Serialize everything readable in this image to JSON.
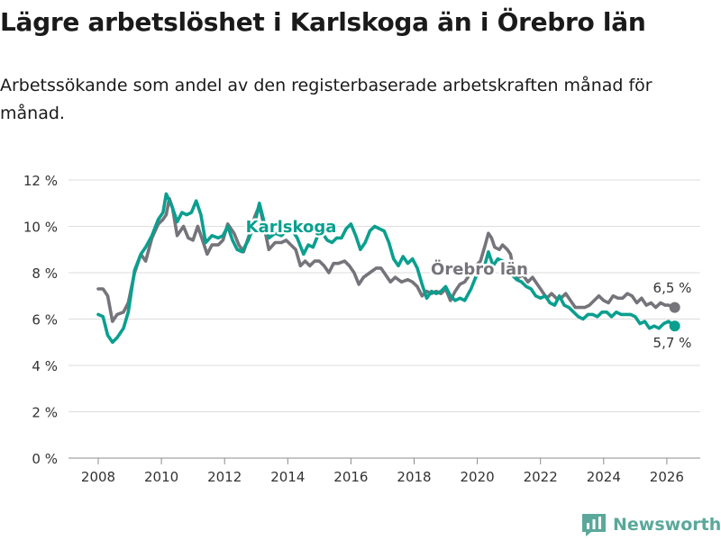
{
  "page": {
    "title": "Lägre arbetslöshet i Karlskoga än i Örebro län",
    "subtitle": "Arbetssökande som andel av den registerbaserade arbetskraften månad för månad."
  },
  "brand": {
    "name": "Newsworthy"
  },
  "chart_data": {
    "type": "line",
    "title": "Lägre arbetslöshet i Karlskoga än i Örebro län",
    "xlabel": "",
    "ylabel": "",
    "ylim": [
      0,
      12
    ],
    "xlim": [
      2007.5,
      2026.8
    ],
    "y_ticks": [
      0,
      2,
      4,
      6,
      8,
      10,
      12
    ],
    "y_tick_labels": [
      "0 %",
      "2 %",
      "4 %",
      "6 %",
      "8 %",
      "10 %",
      "12 %"
    ],
    "x_ticks": [
      2008,
      2010,
      2012,
      2014,
      2016,
      2018,
      2020,
      2022,
      2024,
      2026
    ],
    "x_tick_labels": [
      "2008",
      "2010",
      "2012",
      "2014",
      "2016",
      "2018",
      "2020",
      "2022",
      "2024",
      "2026"
    ],
    "grid": true,
    "legend": "inline labels",
    "series": [
      {
        "name": "Örebro län",
        "color": "#75747a",
        "label": "Örebro län",
        "end_label": "6,5 %",
        "points": [
          [
            2008.0,
            7.3
          ],
          [
            2008.15,
            7.3
          ],
          [
            2008.3,
            7.0
          ],
          [
            2008.45,
            5.9
          ],
          [
            2008.6,
            6.2
          ],
          [
            2008.8,
            6.3
          ],
          [
            2008.95,
            6.7
          ],
          [
            2009.15,
            8.0
          ],
          [
            2009.35,
            8.8
          ],
          [
            2009.5,
            8.5
          ],
          [
            2009.7,
            9.5
          ],
          [
            2009.9,
            10.1
          ],
          [
            2010.05,
            10.3
          ],
          [
            2010.15,
            10.5
          ],
          [
            2010.25,
            11.2
          ],
          [
            2010.35,
            10.8
          ],
          [
            2010.5,
            9.6
          ],
          [
            2010.7,
            10.0
          ],
          [
            2010.85,
            9.5
          ],
          [
            2011.0,
            9.4
          ],
          [
            2011.15,
            10.0
          ],
          [
            2011.3,
            9.4
          ],
          [
            2011.45,
            8.8
          ],
          [
            2011.6,
            9.2
          ],
          [
            2011.8,
            9.2
          ],
          [
            2011.95,
            9.4
          ],
          [
            2012.1,
            10.1
          ],
          [
            2012.3,
            9.7
          ],
          [
            2012.45,
            9.2
          ],
          [
            2012.6,
            8.9
          ],
          [
            2012.8,
            9.7
          ],
          [
            2012.95,
            10.4
          ],
          [
            2013.1,
            10.9
          ],
          [
            2013.25,
            10.0
          ],
          [
            2013.4,
            9.0
          ],
          [
            2013.6,
            9.3
          ],
          [
            2013.8,
            9.3
          ],
          [
            2013.95,
            9.4
          ],
          [
            2014.1,
            9.2
          ],
          [
            2014.25,
            9.0
          ],
          [
            2014.4,
            8.3
          ],
          [
            2014.55,
            8.5
          ],
          [
            2014.7,
            8.3
          ],
          [
            2014.85,
            8.5
          ],
          [
            2015.0,
            8.5
          ],
          [
            2015.15,
            8.3
          ],
          [
            2015.3,
            8.0
          ],
          [
            2015.45,
            8.4
          ],
          [
            2015.6,
            8.4
          ],
          [
            2015.8,
            8.5
          ],
          [
            2015.95,
            8.3
          ],
          [
            2016.1,
            8.0
          ],
          [
            2016.25,
            7.5
          ],
          [
            2016.4,
            7.8
          ],
          [
            2016.6,
            8.0
          ],
          [
            2016.8,
            8.2
          ],
          [
            2016.95,
            8.2
          ],
          [
            2017.1,
            7.9
          ],
          [
            2017.25,
            7.6
          ],
          [
            2017.4,
            7.8
          ],
          [
            2017.6,
            7.6
          ],
          [
            2017.8,
            7.7
          ],
          [
            2017.95,
            7.6
          ],
          [
            2018.1,
            7.4
          ],
          [
            2018.25,
            7.0
          ],
          [
            2018.4,
            7.2
          ],
          [
            2018.55,
            7.1
          ],
          [
            2018.7,
            7.2
          ],
          [
            2018.85,
            7.1
          ],
          [
            2019.0,
            7.3
          ],
          [
            2019.15,
            6.8
          ],
          [
            2019.3,
            7.2
          ],
          [
            2019.45,
            7.5
          ],
          [
            2019.6,
            7.6
          ],
          [
            2019.8,
            8.0
          ],
          [
            2019.95,
            8.3
          ],
          [
            2020.1,
            8.5
          ],
          [
            2020.25,
            9.2
          ],
          [
            2020.35,
            9.7
          ],
          [
            2020.45,
            9.5
          ],
          [
            2020.55,
            9.1
          ],
          [
            2020.7,
            9.0
          ],
          [
            2020.8,
            9.2
          ],
          [
            2020.95,
            9.0
          ],
          [
            2021.05,
            8.8
          ],
          [
            2021.15,
            8.1
          ],
          [
            2021.3,
            7.8
          ],
          [
            2021.45,
            7.9
          ],
          [
            2021.6,
            7.6
          ],
          [
            2021.75,
            7.8
          ],
          [
            2021.9,
            7.5
          ],
          [
            2022.05,
            7.2
          ],
          [
            2022.2,
            6.9
          ],
          [
            2022.35,
            7.1
          ],
          [
            2022.5,
            6.9
          ],
          [
            2022.65,
            6.9
          ],
          [
            2022.8,
            7.1
          ],
          [
            2022.95,
            6.8
          ],
          [
            2023.1,
            6.5
          ],
          [
            2023.25,
            6.5
          ],
          [
            2023.4,
            6.5
          ],
          [
            2023.55,
            6.6
          ],
          [
            2023.7,
            6.8
          ],
          [
            2023.85,
            7.0
          ],
          [
            2024.0,
            6.8
          ],
          [
            2024.15,
            6.7
          ],
          [
            2024.3,
            7.0
          ],
          [
            2024.45,
            6.9
          ],
          [
            2024.6,
            6.9
          ],
          [
            2024.75,
            7.1
          ],
          [
            2024.9,
            7.0
          ],
          [
            2025.05,
            6.7
          ],
          [
            2025.2,
            6.9
          ],
          [
            2025.35,
            6.6
          ],
          [
            2025.5,
            6.7
          ],
          [
            2025.65,
            6.5
          ],
          [
            2025.8,
            6.7
          ],
          [
            2025.95,
            6.6
          ],
          [
            2026.05,
            6.6
          ],
          [
            2026.25,
            6.5
          ]
        ]
      },
      {
        "name": "Karlskoga",
        "color": "#0a9f8f",
        "label": "Karlskoga",
        "end_label": "5,7 %",
        "points": [
          [
            2008.0,
            6.2
          ],
          [
            2008.15,
            6.1
          ],
          [
            2008.3,
            5.3
          ],
          [
            2008.45,
            5.0
          ],
          [
            2008.6,
            5.2
          ],
          [
            2008.8,
            5.6
          ],
          [
            2008.95,
            6.3
          ],
          [
            2009.15,
            8.1
          ],
          [
            2009.35,
            8.8
          ],
          [
            2009.5,
            9.1
          ],
          [
            2009.7,
            9.6
          ],
          [
            2009.9,
            10.3
          ],
          [
            2010.05,
            10.6
          ],
          [
            2010.15,
            11.4
          ],
          [
            2010.25,
            11.1
          ],
          [
            2010.35,
            10.8
          ],
          [
            2010.5,
            10.2
          ],
          [
            2010.65,
            10.6
          ],
          [
            2010.8,
            10.5
          ],
          [
            2010.95,
            10.6
          ],
          [
            2011.1,
            11.1
          ],
          [
            2011.25,
            10.5
          ],
          [
            2011.4,
            9.3
          ],
          [
            2011.6,
            9.6
          ],
          [
            2011.8,
            9.5
          ],
          [
            2011.95,
            9.6
          ],
          [
            2012.1,
            10.0
          ],
          [
            2012.25,
            9.4
          ],
          [
            2012.4,
            9.0
          ],
          [
            2012.55,
            8.9
          ],
          [
            2012.75,
            9.4
          ],
          [
            2012.95,
            10.1
          ],
          [
            2013.1,
            11.0
          ],
          [
            2013.25,
            10.2
          ],
          [
            2013.4,
            9.5
          ],
          [
            2013.6,
            9.7
          ],
          [
            2013.8,
            9.6
          ],
          [
            2013.95,
            9.8
          ],
          [
            2014.1,
            9.9
          ],
          [
            2014.3,
            9.5
          ],
          [
            2014.5,
            8.8
          ],
          [
            2014.65,
            9.2
          ],
          [
            2014.8,
            9.1
          ],
          [
            2014.95,
            9.6
          ],
          [
            2015.1,
            9.7
          ],
          [
            2015.25,
            9.4
          ],
          [
            2015.4,
            9.3
          ],
          [
            2015.55,
            9.5
          ],
          [
            2015.7,
            9.5
          ],
          [
            2015.85,
            9.9
          ],
          [
            2016.0,
            10.1
          ],
          [
            2016.15,
            9.6
          ],
          [
            2016.3,
            9.0
          ],
          [
            2016.45,
            9.3
          ],
          [
            2016.6,
            9.8
          ],
          [
            2016.75,
            10.0
          ],
          [
            2016.9,
            9.9
          ],
          [
            2017.05,
            9.8
          ],
          [
            2017.2,
            9.3
          ],
          [
            2017.35,
            8.6
          ],
          [
            2017.5,
            8.3
          ],
          [
            2017.65,
            8.7
          ],
          [
            2017.8,
            8.4
          ],
          [
            2017.95,
            8.6
          ],
          [
            2018.1,
            8.2
          ],
          [
            2018.25,
            7.5
          ],
          [
            2018.4,
            6.9
          ],
          [
            2018.55,
            7.2
          ],
          [
            2018.7,
            7.1
          ],
          [
            2018.85,
            7.2
          ],
          [
            2019.0,
            7.4
          ],
          [
            2019.15,
            7.0
          ],
          [
            2019.3,
            6.8
          ],
          [
            2019.45,
            6.9
          ],
          [
            2019.6,
            6.8
          ],
          [
            2019.8,
            7.3
          ],
          [
            2019.95,
            7.8
          ],
          [
            2020.1,
            8.1
          ],
          [
            2020.25,
            8.4
          ],
          [
            2020.35,
            8.9
          ],
          [
            2020.5,
            8.3
          ],
          [
            2020.65,
            8.6
          ],
          [
            2020.8,
            8.5
          ],
          [
            2020.95,
            8.4
          ],
          [
            2021.1,
            7.9
          ],
          [
            2021.25,
            7.7
          ],
          [
            2021.4,
            7.6
          ],
          [
            2021.55,
            7.4
          ],
          [
            2021.7,
            7.3
          ],
          [
            2021.85,
            7.0
          ],
          [
            2022.0,
            6.9
          ],
          [
            2022.15,
            7.0
          ],
          [
            2022.3,
            6.7
          ],
          [
            2022.45,
            6.6
          ],
          [
            2022.6,
            7.0
          ],
          [
            2022.75,
            6.6
          ],
          [
            2022.9,
            6.5
          ],
          [
            2023.05,
            6.3
          ],
          [
            2023.2,
            6.1
          ],
          [
            2023.35,
            6.0
          ],
          [
            2023.5,
            6.2
          ],
          [
            2023.65,
            6.2
          ],
          [
            2023.8,
            6.1
          ],
          [
            2023.95,
            6.3
          ],
          [
            2024.1,
            6.3
          ],
          [
            2024.25,
            6.1
          ],
          [
            2024.4,
            6.3
          ],
          [
            2024.55,
            6.2
          ],
          [
            2024.7,
            6.2
          ],
          [
            2024.85,
            6.2
          ],
          [
            2025.0,
            6.1
          ],
          [
            2025.15,
            5.8
          ],
          [
            2025.3,
            5.9
          ],
          [
            2025.45,
            5.6
          ],
          [
            2025.6,
            5.7
          ],
          [
            2025.75,
            5.6
          ],
          [
            2025.9,
            5.8
          ],
          [
            2026.05,
            5.9
          ],
          [
            2026.25,
            5.7
          ]
        ]
      }
    ]
  }
}
